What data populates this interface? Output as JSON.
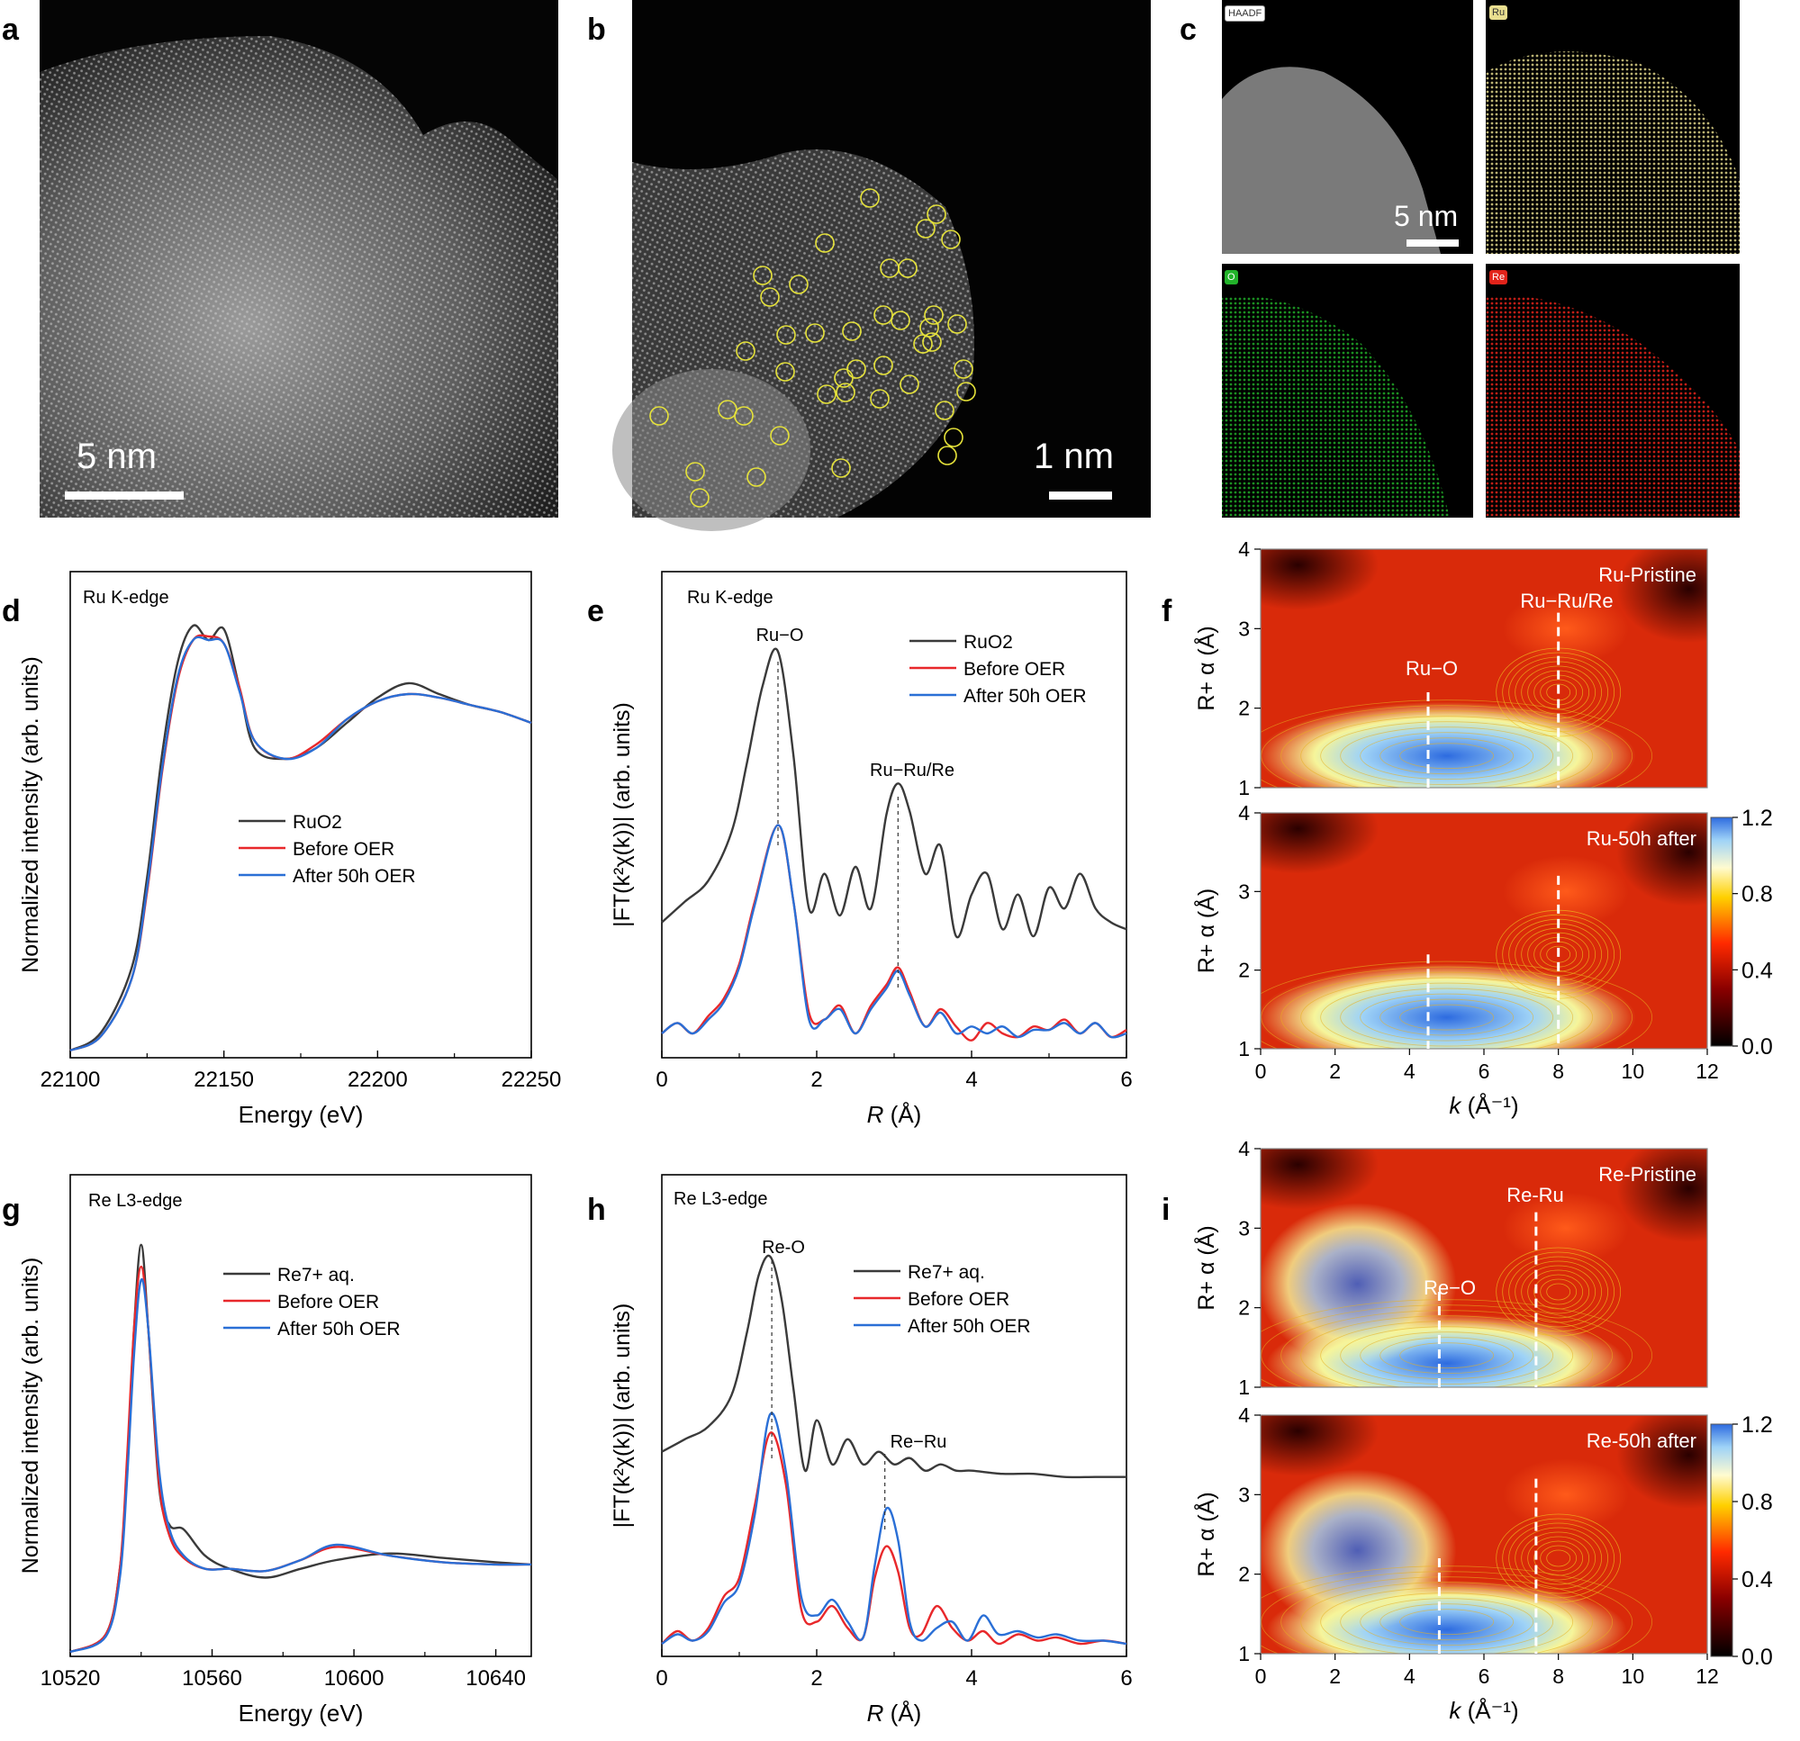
{
  "panels": {
    "a": {
      "label": "a",
      "scale": "5 nm"
    },
    "b": {
      "label": "b",
      "scale": "1 nm"
    },
    "c": {
      "label": "c",
      "scale": "5 nm",
      "maps": [
        "HAADF",
        "Ru",
        "O",
        "Re"
      ]
    },
    "d": {
      "label": "d"
    },
    "e": {
      "label": "e"
    },
    "f": {
      "label": "f"
    },
    "g": {
      "label": "g"
    },
    "h": {
      "label": "h"
    },
    "i": {
      "label": "i"
    }
  },
  "colors": {
    "black": "#3a3a3a",
    "red": "#e8282b",
    "blue": "#2a6fd6"
  },
  "chart_data": [
    {
      "id": "d",
      "type": "line",
      "title": "Ru K-edge",
      "xlabel": "Energy (eV)",
      "ylabel": "Normalized intensity (arb. units)",
      "xlim": [
        22100,
        22250
      ],
      "xticks": [
        "22100",
        "22150",
        "22200",
        "22250"
      ],
      "legend": {
        "placement": "center",
        "entries": [
          "RuO2",
          "Before OER",
          "After 50h OER"
        ]
      },
      "series": [
        {
          "name": "RuO2",
          "x": [
            22100,
            22110,
            22120,
            22125,
            22130,
            22135,
            22140,
            22145,
            22150,
            22155,
            22160,
            22170,
            22180,
            22190,
            22200,
            22210,
            22220,
            22230,
            22240,
            22250
          ],
          "y": [
            0.02,
            0.07,
            0.25,
            0.5,
            0.85,
            1.1,
            1.2,
            1.16,
            1.19,
            1.03,
            0.86,
            0.83,
            0.86,
            0.93,
            1.0,
            1.04,
            1.01,
            0.98,
            0.96,
            0.93
          ]
        },
        {
          "name": "Before OER",
          "x": [
            22100,
            22110,
            22120,
            22125,
            22130,
            22135,
            22140,
            22145,
            22150,
            22155,
            22160,
            22170,
            22180,
            22190,
            22200,
            22210,
            22220,
            22230,
            22240,
            22250
          ],
          "y": [
            0.02,
            0.06,
            0.22,
            0.46,
            0.8,
            1.05,
            1.16,
            1.17,
            1.15,
            1.03,
            0.88,
            0.83,
            0.87,
            0.94,
            0.99,
            1.01,
            1.0,
            0.98,
            0.96,
            0.93
          ]
        },
        {
          "name": "After 50h OER",
          "x": [
            22100,
            22110,
            22120,
            22125,
            22130,
            22135,
            22140,
            22145,
            22150,
            22155,
            22160,
            22170,
            22180,
            22190,
            22200,
            22210,
            22220,
            22230,
            22240,
            22250
          ],
          "y": [
            0.02,
            0.06,
            0.22,
            0.47,
            0.81,
            1.06,
            1.16,
            1.16,
            1.15,
            1.02,
            0.88,
            0.83,
            0.86,
            0.94,
            0.99,
            1.01,
            1.0,
            0.98,
            0.96,
            0.93
          ]
        }
      ]
    },
    {
      "id": "e",
      "type": "line",
      "title": "Ru K-edge",
      "xlabel": "R (Å)",
      "ylabel": "|FT(k²χ(k))| (arb. units)",
      "xlim": [
        0,
        6
      ],
      "xticks": [
        "0",
        "2",
        "4",
        "6"
      ],
      "annotations": [
        "Ru−O",
        "Ru−Ru/Re"
      ],
      "legend": {
        "placement": "top-right",
        "entries": [
          "RuO2",
          "Before OER",
          "After 50h OER"
        ]
      },
      "series": [
        {
          "name": "RuO2",
          "x": [
            0,
            0.3,
            0.6,
            0.9,
            1.1,
            1.3,
            1.5,
            1.7,
            1.9,
            2.1,
            2.3,
            2.5,
            2.7,
            2.9,
            3.05,
            3.2,
            3.4,
            3.6,
            3.8,
            4.0,
            4.2,
            4.4,
            4.6,
            4.8,
            5.0,
            5.2,
            5.4,
            5.6,
            5.8,
            6.0
          ],
          "y": [
            0.34,
            0.4,
            0.46,
            0.6,
            0.8,
            1.02,
            1.12,
            0.82,
            0.38,
            0.48,
            0.36,
            0.5,
            0.38,
            0.65,
            0.74,
            0.66,
            0.48,
            0.56,
            0.3,
            0.42,
            0.48,
            0.32,
            0.42,
            0.3,
            0.44,
            0.38,
            0.48,
            0.38,
            0.34,
            0.32
          ]
        },
        {
          "name": "Before OER",
          "x": [
            0,
            0.2,
            0.4,
            0.6,
            0.8,
            1.0,
            1.2,
            1.5,
            1.7,
            1.9,
            2.1,
            2.3,
            2.5,
            2.7,
            2.9,
            3.05,
            3.2,
            3.4,
            3.6,
            3.8,
            4.0,
            4.2,
            4.4,
            4.6,
            4.8,
            5.0,
            5.2,
            5.4,
            5.6,
            5.8,
            6.0
          ],
          "y": [
            0.02,
            0.05,
            0.02,
            0.07,
            0.12,
            0.22,
            0.4,
            0.62,
            0.4,
            0.08,
            0.06,
            0.1,
            0.02,
            0.1,
            0.16,
            0.21,
            0.14,
            0.04,
            0.09,
            0.04,
            0.0,
            0.05,
            0.02,
            0.01,
            0.04,
            0.03,
            0.06,
            0.02,
            0.05,
            0.01,
            0.03
          ]
        },
        {
          "name": "After 50h OER",
          "x": [
            0,
            0.2,
            0.4,
            0.6,
            0.8,
            1.0,
            1.2,
            1.5,
            1.7,
            1.9,
            2.1,
            2.3,
            2.5,
            2.7,
            2.9,
            3.05,
            3.2,
            3.4,
            3.6,
            3.8,
            4.0,
            4.2,
            4.4,
            4.6,
            4.8,
            5.0,
            5.2,
            5.4,
            5.6,
            5.8,
            6.0
          ],
          "y": [
            0.02,
            0.05,
            0.02,
            0.06,
            0.11,
            0.21,
            0.39,
            0.62,
            0.4,
            0.06,
            0.06,
            0.09,
            0.02,
            0.09,
            0.15,
            0.2,
            0.13,
            0.04,
            0.08,
            0.02,
            0.04,
            0.02,
            0.04,
            0.01,
            0.03,
            0.03,
            0.05,
            0.02,
            0.05,
            0.01,
            0.02
          ]
        }
      ]
    },
    {
      "id": "f",
      "type": "heatmap",
      "title": "Ru-Pristine / Ru-50h after",
      "subplots": [
        "Ru-Pristine",
        "Ru-50h after"
      ],
      "xlabel": "k (Å⁻¹)",
      "ylabel": "R+ α (Å)",
      "xlim": [
        0,
        12
      ],
      "ylim": [
        1,
        4
      ],
      "xticks": [
        "0",
        "2",
        "4",
        "6",
        "8",
        "10",
        "12"
      ],
      "yticks": [
        "1",
        "2",
        "3",
        "4"
      ],
      "annotations": [
        "Ru−O",
        "Ru−Ru/Re"
      ],
      "colorbar": {
        "min": 0.0,
        "max": 1.2,
        "ticks": [
          "0.0",
          "0.4",
          "0.8",
          "1.2"
        ]
      }
    },
    {
      "id": "g",
      "type": "line",
      "title": "Re L3-edge",
      "xlabel": "Energy (eV)",
      "ylabel": "Normalized intensity (arb. units)",
      "xlim": [
        10520,
        10650
      ],
      "xticks": [
        "10520",
        "10560",
        "10600",
        "10640"
      ],
      "legend": {
        "placement": "center",
        "entries": [
          "Re7+ aq.",
          "Before OER",
          "After 50h OER"
        ]
      },
      "series": [
        {
          "name": "Re7+ aq.",
          "x": [
            10520,
            10530,
            10534,
            10536,
            10538,
            10540,
            10542,
            10545,
            10548,
            10552,
            10558,
            10565,
            10575,
            10585,
            10595,
            10610,
            10625,
            10640,
            10650
          ],
          "y": [
            0.02,
            0.1,
            0.4,
            0.85,
            1.5,
            1.88,
            1.5,
            0.78,
            0.6,
            0.58,
            0.46,
            0.4,
            0.36,
            0.4,
            0.44,
            0.47,
            0.45,
            0.43,
            0.42
          ]
        },
        {
          "name": "Before OER",
          "x": [
            10520,
            10530,
            10534,
            10536,
            10538,
            10540,
            10542,
            10545,
            10548,
            10552,
            10558,
            10565,
            10575,
            10585,
            10595,
            10610,
            10625,
            10640,
            10650
          ],
          "y": [
            0.02,
            0.1,
            0.4,
            0.9,
            1.5,
            1.78,
            1.5,
            0.8,
            0.55,
            0.45,
            0.4,
            0.4,
            0.39,
            0.44,
            0.5,
            0.46,
            0.43,
            0.42,
            0.42
          ]
        },
        {
          "name": "After 50h OER",
          "x": [
            10520,
            10530,
            10534,
            10536,
            10538,
            10540,
            10542,
            10545,
            10548,
            10552,
            10558,
            10565,
            10575,
            10585,
            10595,
            10610,
            10625,
            10640,
            10650
          ],
          "y": [
            0.02,
            0.09,
            0.36,
            0.8,
            1.38,
            1.72,
            1.5,
            0.86,
            0.58,
            0.46,
            0.4,
            0.4,
            0.39,
            0.44,
            0.51,
            0.46,
            0.43,
            0.42,
            0.42
          ]
        }
      ]
    },
    {
      "id": "h",
      "type": "line",
      "title": "Re L3-edge",
      "xlabel": "R (Å)",
      "ylabel": "|FT(k²χ(k))| (arb. units)",
      "xlim": [
        0,
        6
      ],
      "xticks": [
        "0",
        "2",
        "4",
        "6"
      ],
      "annotations": [
        "Re-O",
        "Re−Ru"
      ],
      "legend": {
        "placement": "top-right",
        "entries": [
          "Re7+ aq.",
          "Before OER",
          "After 50h OER"
        ]
      },
      "series": [
        {
          "name": "Re7+ aq.",
          "x": [
            0,
            0.3,
            0.6,
            0.9,
            1.1,
            1.25,
            1.4,
            1.55,
            1.7,
            1.85,
            2.0,
            2.2,
            2.4,
            2.6,
            2.8,
            3.0,
            3.2,
            3.4,
            3.6,
            3.8,
            4.0,
            4.4,
            4.8,
            5.2,
            5.6,
            6.0
          ],
          "y": [
            0.62,
            0.66,
            0.7,
            0.8,
            1.0,
            1.18,
            1.24,
            1.1,
            0.82,
            0.56,
            0.72,
            0.58,
            0.66,
            0.58,
            0.62,
            0.58,
            0.6,
            0.56,
            0.58,
            0.56,
            0.56,
            0.55,
            0.55,
            0.54,
            0.54,
            0.54
          ]
        },
        {
          "name": "Before OER",
          "x": [
            0,
            0.2,
            0.4,
            0.6,
            0.8,
            1.0,
            1.2,
            1.4,
            1.6,
            1.8,
            2.0,
            2.2,
            2.4,
            2.6,
            2.75,
            2.9,
            3.05,
            3.2,
            3.35,
            3.55,
            3.75,
            3.95,
            4.15,
            4.35,
            4.6,
            4.85,
            5.1,
            5.4,
            5.7,
            6.0
          ],
          "y": [
            0.01,
            0.05,
            0.02,
            0.06,
            0.16,
            0.22,
            0.45,
            0.68,
            0.52,
            0.12,
            0.08,
            0.13,
            0.06,
            0.03,
            0.22,
            0.32,
            0.24,
            0.06,
            0.04,
            0.13,
            0.06,
            0.02,
            0.05,
            0.01,
            0.04,
            0.02,
            0.03,
            0.01,
            0.02,
            0.01
          ]
        },
        {
          "name": "After 50h OER",
          "x": [
            0,
            0.2,
            0.4,
            0.6,
            0.8,
            1.0,
            1.2,
            1.4,
            1.6,
            1.8,
            2.0,
            2.2,
            2.4,
            2.6,
            2.75,
            2.9,
            3.05,
            3.2,
            3.35,
            3.55,
            3.75,
            3.95,
            4.15,
            4.35,
            4.6,
            4.85,
            5.1,
            5.4,
            5.7,
            6.0
          ],
          "y": [
            0.01,
            0.04,
            0.02,
            0.05,
            0.14,
            0.2,
            0.42,
            0.74,
            0.56,
            0.16,
            0.1,
            0.15,
            0.08,
            0.03,
            0.26,
            0.44,
            0.34,
            0.08,
            0.02,
            0.06,
            0.08,
            0.02,
            0.1,
            0.04,
            0.05,
            0.03,
            0.04,
            0.02,
            0.02,
            0.01
          ]
        }
      ]
    },
    {
      "id": "i",
      "type": "heatmap",
      "title": "Re-Pristine / Re-50h after",
      "subplots": [
        "Re-Pristine",
        "Re-50h after"
      ],
      "xlabel": "k (Å⁻¹)",
      "ylabel": "R+ α (Å)",
      "xlim": [
        0,
        12
      ],
      "ylim": [
        1,
        4
      ],
      "xticks": [
        "0",
        "2",
        "4",
        "6",
        "8",
        "10",
        "12"
      ],
      "yticks": [
        "1",
        "2",
        "3",
        "4"
      ],
      "annotations": [
        "Re−O",
        "Re-Ru"
      ],
      "colorbar": {
        "min": 0.0,
        "max": 1.2,
        "ticks": [
          "0.0",
          "0.4",
          "0.8",
          "1.2"
        ]
      }
    }
  ]
}
